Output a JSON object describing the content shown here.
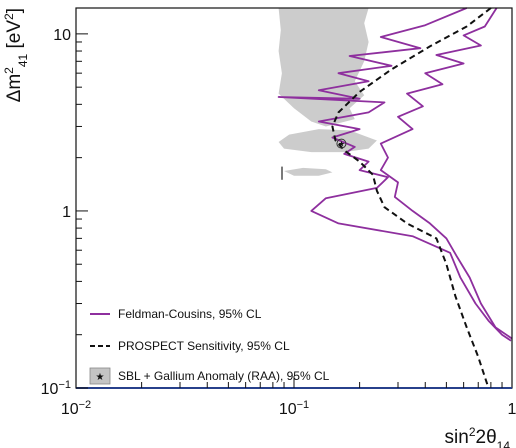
{
  "chart_data": {
    "type": "line",
    "title": "",
    "xlabel": {
      "base": "sin",
      "sup": "2",
      "mid": "2θ",
      "sub": "14"
    },
    "ylabel": {
      "pre": "Δm",
      "sup": "2",
      "sub": "41",
      "post": " [eV",
      "unit_sup": "2",
      "end": "]"
    },
    "x_scale": "log",
    "y_scale": "log",
    "xlim": [
      0.01,
      1
    ],
    "ylim": [
      0.1,
      14
    ],
    "x_ticks": [
      {
        "value": 0.01,
        "base": "10",
        "exp": "−2"
      },
      {
        "value": 0.1,
        "base": "10",
        "exp": "−1"
      },
      {
        "value": 1,
        "base": "1",
        "exp": ""
      }
    ],
    "y_ticks": [
      {
        "value": 0.1,
        "base": "10",
        "exp": "−1"
      },
      {
        "value": 1,
        "base": "1",
        "exp": ""
      },
      {
        "value": 10,
        "base": "10",
        "exp": ""
      }
    ],
    "grid": false,
    "legend_position": "bottom-left",
    "series": [
      {
        "name": "Feldman-Cousins, 95% CL",
        "style": "solid",
        "color": "#8e2f9e",
        "points": [
          [
            0.62,
            14.0
          ],
          [
            0.4,
            11.2
          ],
          [
            0.25,
            9.6
          ],
          [
            0.38,
            8.3
          ],
          [
            0.18,
            7.5
          ],
          [
            0.28,
            6.6
          ],
          [
            0.16,
            6.0
          ],
          [
            0.22,
            5.4
          ],
          [
            0.13,
            4.8
          ],
          [
            0.2,
            4.3
          ],
          [
            0.085,
            4.4
          ],
          [
            0.26,
            4.1
          ],
          [
            0.22,
            3.6
          ],
          [
            0.13,
            3.2
          ],
          [
            0.2,
            2.9
          ],
          [
            0.15,
            2.6
          ],
          [
            0.19,
            2.3
          ],
          [
            0.17,
            2.1
          ],
          [
            0.22,
            1.9
          ],
          [
            0.2,
            1.7
          ],
          [
            0.27,
            1.55
          ],
          [
            0.24,
            1.35
          ],
          [
            0.14,
            1.18
          ],
          [
            0.12,
            1.0
          ],
          [
            0.16,
            0.85
          ],
          [
            0.35,
            0.72
          ],
          [
            0.52,
            0.58
          ],
          [
            0.58,
            0.42
          ],
          [
            0.68,
            0.3
          ],
          [
            0.78,
            0.24
          ],
          [
            0.9,
            0.2
          ],
          [
            0.99,
            0.185
          ]
        ]
      },
      {
        "name": "Feldman-Cousins, 95% CL",
        "style": "solid",
        "color": "#8e2f9e",
        "points": [
          [
            0.85,
            14.0
          ],
          [
            0.75,
            11.0
          ],
          [
            0.6,
            9.8
          ],
          [
            0.72,
            8.6
          ],
          [
            0.45,
            7.6
          ],
          [
            0.6,
            6.8
          ],
          [
            0.4,
            6.0
          ],
          [
            0.48,
            5.2
          ],
          [
            0.33,
            4.6
          ],
          [
            0.39,
            3.9
          ],
          [
            0.3,
            3.4
          ],
          [
            0.35,
            2.9
          ],
          [
            0.25,
            2.4
          ],
          [
            0.27,
            2.0
          ],
          [
            0.25,
            1.7
          ],
          [
            0.3,
            1.45
          ],
          [
            0.29,
            1.2
          ],
          [
            0.35,
            1.0
          ],
          [
            0.42,
            0.85
          ],
          [
            0.5,
            0.7
          ],
          [
            0.56,
            0.55
          ],
          [
            0.64,
            0.42
          ],
          [
            0.72,
            0.3
          ],
          [
            0.84,
            0.22
          ],
          [
            1.0,
            0.19
          ]
        ]
      },
      {
        "name": "PROSPECT Sensitivity, 95% CL",
        "style": "dashed",
        "color": "#111111",
        "points": [
          [
            0.8,
            14.0
          ],
          [
            0.62,
            11.0
          ],
          [
            0.42,
            8.5
          ],
          [
            0.28,
            6.3
          ],
          [
            0.2,
            4.7
          ],
          [
            0.16,
            3.6
          ],
          [
            0.15,
            3.0
          ],
          [
            0.155,
            2.5
          ],
          [
            0.17,
            2.2
          ],
          [
            0.2,
            1.9
          ],
          [
            0.23,
            1.6
          ],
          [
            0.24,
            1.3
          ],
          [
            0.26,
            1.05
          ],
          [
            0.33,
            0.85
          ],
          [
            0.45,
            0.7
          ],
          [
            0.5,
            0.5
          ],
          [
            0.55,
            0.33
          ],
          [
            0.62,
            0.22
          ],
          [
            0.7,
            0.15
          ],
          [
            0.78,
            0.1
          ]
        ]
      }
    ],
    "allowed_region": {
      "name": "SBL + Gallium Anomaly (RAA), 95% CL",
      "color": "#cccccc",
      "regions": [
        [
          [
            0.085,
            14.0
          ],
          [
            0.22,
            14.0
          ],
          [
            0.21,
            11.5
          ],
          [
            0.22,
            9.0
          ],
          [
            0.21,
            7.0
          ],
          [
            0.19,
            5.4
          ],
          [
            0.21,
            4.5
          ],
          [
            0.18,
            3.8
          ],
          [
            0.19,
            3.3
          ],
          [
            0.14,
            3.0
          ],
          [
            0.12,
            3.2
          ],
          [
            0.1,
            3.8
          ],
          [
            0.085,
            4.6
          ],
          [
            0.088,
            6.0
          ],
          [
            0.085,
            8.0
          ],
          [
            0.087,
            10.5
          ]
        ],
        [
          [
            0.085,
            2.45
          ],
          [
            0.095,
            2.7
          ],
          [
            0.13,
            2.9
          ],
          [
            0.18,
            2.85
          ],
          [
            0.24,
            2.5
          ],
          [
            0.22,
            2.25
          ],
          [
            0.17,
            2.15
          ],
          [
            0.12,
            2.15
          ],
          [
            0.09,
            2.25
          ]
        ],
        [
          [
            0.09,
            1.68
          ],
          [
            0.11,
            1.75
          ],
          [
            0.14,
            1.72
          ],
          [
            0.15,
            1.65
          ],
          [
            0.13,
            1.58
          ],
          [
            0.1,
            1.58
          ]
        ]
      ],
      "best_fit": [
        0.165,
        2.4
      ]
    }
  }
}
